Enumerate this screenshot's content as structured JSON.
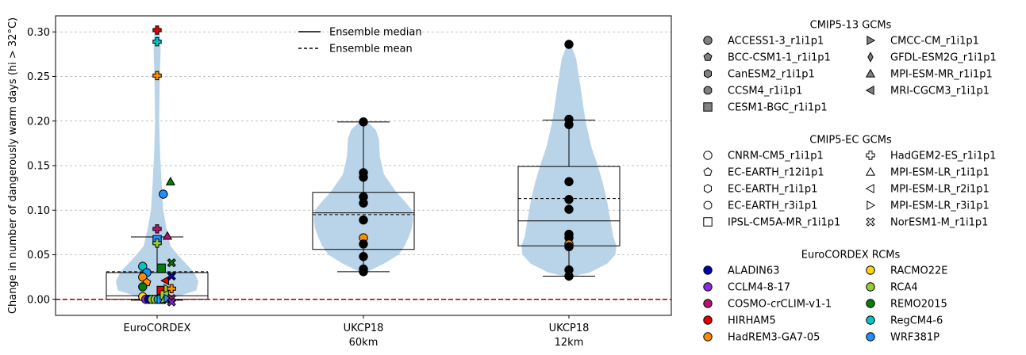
{
  "chart_data": {
    "type": "violin-box",
    "ylabel": "Change in number of dangerously warm days (hi > 32°C)",
    "ylim": [
      -0.018,
      0.318
    ],
    "yticks": [
      0.0,
      0.05,
      0.1,
      0.15,
      0.2,
      0.25,
      0.3
    ],
    "ytick_labels": [
      "0.00",
      "0.05",
      "0.10",
      "0.15",
      "0.20",
      "0.25",
      "0.30"
    ],
    "grid": "horizontal dashed",
    "reference_line": {
      "y": 0.0,
      "color": "#8b0000",
      "style": "dashed"
    },
    "categories": [
      {
        "label": "EuroCORDEX",
        "sublabel": ""
      },
      {
        "label": "UKCP18",
        "sublabel": "60km"
      },
      {
        "label": "UKCP18",
        "sublabel": "12km"
      }
    ],
    "violin_color": "#b9d4e9",
    "violins": [
      {
        "profile": [
          [
            -0.002,
            0.03
          ],
          [
            0.01,
            0.19
          ],
          [
            0.02,
            0.2
          ],
          [
            0.03,
            0.18
          ],
          [
            0.04,
            0.14
          ],
          [
            0.05,
            0.1
          ],
          [
            0.06,
            0.065
          ],
          [
            0.08,
            0.045
          ],
          [
            0.1,
            0.03
          ],
          [
            0.13,
            0.022
          ],
          [
            0.16,
            0.015
          ],
          [
            0.2,
            0.01
          ],
          [
            0.25,
            0.013
          ],
          [
            0.28,
            0.017
          ],
          [
            0.3,
            0.013
          ],
          [
            0.303,
            0.004
          ]
        ]
      },
      {
        "profile": [
          [
            0.031,
            0.02
          ],
          [
            0.04,
            0.1
          ],
          [
            0.05,
            0.17
          ],
          [
            0.06,
            0.2
          ],
          [
            0.07,
            0.22
          ],
          [
            0.08,
            0.235
          ],
          [
            0.09,
            0.24
          ],
          [
            0.1,
            0.235
          ],
          [
            0.11,
            0.2
          ],
          [
            0.12,
            0.16
          ],
          [
            0.14,
            0.1
          ],
          [
            0.16,
            0.08
          ],
          [
            0.18,
            0.075
          ],
          [
            0.19,
            0.06
          ],
          [
            0.199,
            0.02
          ]
        ]
      },
      {
        "profile": [
          [
            0.026,
            0.02
          ],
          [
            0.03,
            0.1
          ],
          [
            0.04,
            0.185
          ],
          [
            0.05,
            0.225
          ],
          [
            0.06,
            0.23
          ],
          [
            0.07,
            0.215
          ],
          [
            0.09,
            0.2
          ],
          [
            0.11,
            0.185
          ],
          [
            0.13,
            0.165
          ],
          [
            0.15,
            0.14
          ],
          [
            0.17,
            0.11
          ],
          [
            0.2,
            0.08
          ],
          [
            0.24,
            0.055
          ],
          [
            0.27,
            0.035
          ],
          [
            0.286,
            0.008
          ]
        ]
      }
    ],
    "boxes": [
      {
        "q1": 0.0,
        "q3": 0.03,
        "median": 0.004,
        "mean": 0.031,
        "whisker_low": -0.001,
        "whisker_high": 0.07
      },
      {
        "q1": 0.056,
        "q3": 0.12,
        "median": 0.097,
        "mean": 0.095,
        "whisker_low": 0.031,
        "whisker_high": 0.199
      },
      {
        "q1": 0.06,
        "q3": 0.149,
        "median": 0.088,
        "mean": 0.113,
        "whisker_low": 0.026,
        "whisker_high": 0.201
      }
    ],
    "points": [
      {
        "cat": 0,
        "dx": -0.07,
        "y": 0.037,
        "gcm": "CNRM-CM5_r1i1p1",
        "rcm": "RegCM4-6"
      },
      {
        "cat": 0,
        "dx": -0.05,
        "y": 0.03,
        "gcm": "CNRM-CM5_r1i1p1",
        "rcm": "WRF381P"
      },
      {
        "cat": 0,
        "dx": -0.07,
        "y": 0.025,
        "gcm": "CNRM-CM5_r1i1p1",
        "rcm": "HadREM3-GA7-05"
      },
      {
        "cat": 0,
        "dx": -0.05,
        "y": 0.019,
        "gcm": "EC-EARTH_r12i1p1",
        "rcm": "HadREM3-GA7-05"
      },
      {
        "cat": 0,
        "dx": -0.07,
        "y": 0.014,
        "gcm": "CNRM-CM5_r1i1p1",
        "rcm": "REMO2015"
      },
      {
        "cat": 0,
        "dx": -0.07,
        "y": 0.003,
        "gcm": "CNRM-CM5_r1i1p1",
        "rcm": "RACMO22E"
      },
      {
        "cat": 0,
        "dx": -0.055,
        "y": 0.0,
        "gcm": "CNRM-CM5_r1i1p1",
        "rcm": "CCLM4-8-17"
      },
      {
        "cat": 0,
        "dx": -0.04,
        "y": 0.0,
        "gcm": "CNRM-CM5_r1i1p1",
        "rcm": "ALADIN63"
      },
      {
        "cat": 0,
        "dx": -0.025,
        "y": 0.0,
        "gcm": "CNRM-CM5_r1i1p1",
        "rcm": "RCA4"
      },
      {
        "cat": 0,
        "dx": -0.01,
        "y": 0.0,
        "gcm": "CNRM-CM5_r1i1p1",
        "rcm": "RCA4"
      },
      {
        "cat": 0,
        "dx": 0.005,
        "y": 0.0,
        "gcm": "CNRM-CM5_r1i1p1",
        "rcm": "RegCM4-6"
      },
      {
        "cat": 0,
        "dx": 0.02,
        "y": 0.01,
        "gcm": "CESM1-BGC_r1i1p1",
        "rcm": "HIRHAM5"
      },
      {
        "cat": 0,
        "dx": 0.02,
        "y": 0.035,
        "gcm": "CESM1-BGC_r1i1p1",
        "rcm": "REMO2015"
      },
      {
        "cat": 0,
        "dx": 0.02,
        "y": 0.0,
        "gcm": "IPSL-CM5A-MR_r1i1p1",
        "rcm": "WRF381P"
      },
      {
        "cat": 0,
        "dx": 0.035,
        "y": 0.005,
        "gcm": "IPSL-CM5A-MR_r1i1p1",
        "rcm": "RCA4"
      },
      {
        "cat": 0,
        "dx": 0.035,
        "y": 0.0,
        "gcm": "MPI-ESM-LR_r1i1p1",
        "rcm": "RCA4"
      },
      {
        "cat": 0,
        "dx": 0.04,
        "y": 0.021,
        "gcm": "MPI-ESM-LR_r2i1p1",
        "rcm": "HIRHAM5"
      },
      {
        "cat": 0,
        "dx": 0.05,
        "y": 0.012,
        "gcm": "MPI-ESM-LR_r3i1p1",
        "rcm": "RCA4"
      },
      {
        "cat": 0,
        "dx": 0.05,
        "y": 0.001,
        "gcm": "MPI-ESM-LR_r3i1p1",
        "rcm": "WRF381P"
      },
      {
        "cat": 0,
        "dx": 0.07,
        "y": 0.041,
        "gcm": "NorESM1-M_r1i1p1",
        "rcm": "REMO2015"
      },
      {
        "cat": 0,
        "dx": 0.07,
        "y": 0.026,
        "gcm": "NorESM1-M_r1i1p1",
        "rcm": "ALADIN63"
      },
      {
        "cat": 0,
        "dx": 0.07,
        "y": 0.012,
        "gcm": "HadGEM2-ES_r1i1p1",
        "rcm": "HadREM3-GA7-05"
      },
      {
        "cat": 0,
        "dx": 0.07,
        "y": 0.001,
        "gcm": "NorESM1-M_r1i1p1",
        "rcm": "COSMO-crCLIM-v1-1"
      },
      {
        "cat": 0,
        "dx": 0.07,
        "y": -0.003,
        "gcm": "NorESM1-M_r1i1p1",
        "rcm": "CCLM4-8-17"
      },
      {
        "cat": 0,
        "dx": 0.0,
        "y": 0.302,
        "gcm": "HadGEM2-ES_r1i1p1",
        "rcm": "HIRHAM5"
      },
      {
        "cat": 0,
        "dx": 0.0,
        "y": 0.289,
        "gcm": "HadGEM2-ES_r1i1p1",
        "rcm": "RegCM4-6"
      },
      {
        "cat": 0,
        "dx": 0.0,
        "y": 0.251,
        "gcm": "HadGEM2-ES_r1i1p1",
        "rcm": "HadREM3-GA7-05"
      },
      {
        "cat": 0,
        "dx": 0.065,
        "y": 0.132,
        "gcm": "MPI-ESM-MR_r1i1p1",
        "rcm": "REMO2015"
      },
      {
        "cat": 0,
        "dx": 0.03,
        "y": 0.118,
        "gcm": "MPI-CGCM3_r1i1p1",
        "rcm": "WRF381P"
      },
      {
        "cat": 0,
        "dx": 0.05,
        "y": 0.071,
        "gcm": "MPI-ESM-LR_r1i1p1",
        "rcm": "COSMO-crCLIM-v1-1"
      },
      {
        "cat": 0,
        "dx": 0.0,
        "y": 0.079,
        "gcm": "HadGEM2-ES_r1i1p1",
        "rcm": "COSMO-crCLIM-v1-1"
      },
      {
        "cat": 0,
        "dx": 0.0,
        "y": 0.067,
        "gcm": "CESM1-BGC_r1i1p1",
        "rcm": "WRF381P"
      },
      {
        "cat": 0,
        "dx": 0.0,
        "y": 0.063,
        "gcm": "HadGEM2-ES_r1i1p1",
        "rcm": "RCA4"
      },
      {
        "cat": 1,
        "dx": 0.0,
        "y": 0.199,
        "gcm": "ACCESS1-3_r1i1p1",
        "rcm": ""
      },
      {
        "cat": 1,
        "dx": 0.0,
        "y": 0.142,
        "gcm": "ACCESS1-3_r1i1p1",
        "rcm": ""
      },
      {
        "cat": 1,
        "dx": 0.0,
        "y": 0.137,
        "gcm": "ACCESS1-3_r1i1p1",
        "rcm": ""
      },
      {
        "cat": 1,
        "dx": 0.0,
        "y": 0.115,
        "gcm": "ACCESS1-3_r1i1p1",
        "rcm": ""
      },
      {
        "cat": 1,
        "dx": 0.0,
        "y": 0.108,
        "gcm": "ACCESS1-3_r1i1p1",
        "rcm": ""
      },
      {
        "cat": 1,
        "dx": 0.0,
        "y": 0.089,
        "gcm": "ACCESS1-3_r1i1p1",
        "rcm": ""
      },
      {
        "cat": 1,
        "dx": 0.0,
        "y": 0.069,
        "gcm": "ACCESS1-3_r1i1p1",
        "rcm": "HadREM3-GA7-05"
      },
      {
        "cat": 1,
        "dx": 0.0,
        "y": 0.062,
        "gcm": "ACCESS1-3_r1i1p1",
        "rcm": ""
      },
      {
        "cat": 1,
        "dx": 0.0,
        "y": 0.048,
        "gcm": "ACCESS1-3_r1i1p1",
        "rcm": ""
      },
      {
        "cat": 1,
        "dx": 0.0,
        "y": 0.034,
        "gcm": "ACCESS1-3_r1i1p1",
        "rcm": ""
      },
      {
        "cat": 1,
        "dx": 0.0,
        "y": 0.031,
        "gcm": "ACCESS1-3_r1i1p1",
        "rcm": ""
      },
      {
        "cat": 2,
        "dx": 0.0,
        "y": 0.286,
        "gcm": "ACCESS1-3_r1i1p1",
        "rcm": ""
      },
      {
        "cat": 2,
        "dx": 0.0,
        "y": 0.202,
        "gcm": "ACCESS1-3_r1i1p1",
        "rcm": ""
      },
      {
        "cat": 2,
        "dx": 0.0,
        "y": 0.196,
        "gcm": "ACCESS1-3_r1i1p1",
        "rcm": ""
      },
      {
        "cat": 2,
        "dx": 0.0,
        "y": 0.132,
        "gcm": "ACCESS1-3_r1i1p1",
        "rcm": ""
      },
      {
        "cat": 2,
        "dx": 0.0,
        "y": 0.112,
        "gcm": "ACCESS1-3_r1i1p1",
        "rcm": ""
      },
      {
        "cat": 2,
        "dx": 0.0,
        "y": 0.101,
        "gcm": "ACCESS1-3_r1i1p1",
        "rcm": ""
      },
      {
        "cat": 2,
        "dx": 0.0,
        "y": 0.073,
        "gcm": "ACCESS1-3_r1i1p1",
        "rcm": ""
      },
      {
        "cat": 2,
        "dx": 0.0,
        "y": 0.069,
        "gcm": "ACCESS1-3_r1i1p1",
        "rcm": ""
      },
      {
        "cat": 2,
        "dx": 0.0,
        "y": 0.062,
        "gcm": "ACCESS1-3_r1i1p1",
        "rcm": "HadREM3-GA7-05"
      },
      {
        "cat": 2,
        "dx": 0.0,
        "y": 0.059,
        "gcm": "ACCESS1-3_r1i1p1",
        "rcm": ""
      },
      {
        "cat": 2,
        "dx": 0.0,
        "y": 0.033,
        "gcm": "ACCESS1-3_r1i1p1",
        "rcm": ""
      },
      {
        "cat": 2,
        "dx": 0.0,
        "y": 0.026,
        "gcm": "ACCESS1-3_r1i1p1",
        "rcm": ""
      }
    ],
    "stat_legend": [
      {
        "label": "Ensemble median",
        "style": "solid"
      },
      {
        "label": "Ensemble mean",
        "style": "dashed"
      }
    ],
    "legend_placement": "outside-right",
    "legend_groups": [
      {
        "title": "CMIP5-13 GCMs",
        "columns": [
          [
            {
              "label": "ACCESS1-3_r1i1p1",
              "marker": "circle",
              "fill": "#808080"
            },
            {
              "label": "BCC-CSM1-1_r1i1p1",
              "marker": "pentagon",
              "fill": "#808080"
            },
            {
              "label": "CanESM2_r1i1p1",
              "marker": "hexagon",
              "fill": "#808080"
            },
            {
              "label": "CCSM4_r1i1p1",
              "marker": "octagon",
              "fill": "#808080"
            },
            {
              "label": "CESM1-BGC_r1i1p1",
              "marker": "square",
              "fill": "#808080"
            }
          ],
          [
            {
              "label": "CMCC-CM_r1i1p1",
              "marker": "triangle-right",
              "fill": "#808080"
            },
            {
              "label": "GFDL-ESM2G_r1i1p1",
              "marker": "thin-diamond",
              "fill": "#808080"
            },
            {
              "label": "MPI-ESM-MR_r1i1p1",
              "marker": "triangle-up",
              "fill": "#808080"
            },
            {
              "label": "MRI-CGCM3_r1i1p1",
              "marker": "triangle-left",
              "fill": "#808080"
            }
          ]
        ]
      },
      {
        "title": "CMIP5-EC GCMs",
        "columns": [
          [
            {
              "label": "CNRM-CM5_r1i1p1",
              "marker": "circle",
              "fill": "#ffffff"
            },
            {
              "label": "EC-EARTH_r12i1p1",
              "marker": "pentagon",
              "fill": "#ffffff"
            },
            {
              "label": "EC-EARTH_r1i1p1",
              "marker": "hexagon",
              "fill": "#ffffff"
            },
            {
              "label": "EC-EARTH_r3i1p1",
              "marker": "octagon",
              "fill": "#ffffff"
            },
            {
              "label": "IPSL-CM5A-MR_r1i1p1",
              "marker": "square",
              "fill": "#ffffff"
            }
          ],
          [
            {
              "label": "HadGEM2-ES_r1i1p1",
              "marker": "plus",
              "fill": "#ffffff"
            },
            {
              "label": "MPI-ESM-LR_r1i1p1",
              "marker": "triangle-up",
              "fill": "#ffffff"
            },
            {
              "label": "MPI-ESM-LR_r2i1p1",
              "marker": "triangle-left",
              "fill": "#ffffff"
            },
            {
              "label": "MPI-ESM-LR_r3i1p1",
              "marker": "triangle-right",
              "fill": "#ffffff"
            },
            {
              "label": "NorESM1-M_r1i1p1",
              "marker": "x",
              "fill": "#ffffff"
            }
          ]
        ]
      },
      {
        "title": "EuroCORDEX RCMs",
        "columns": [
          [
            {
              "label": "ALADIN63",
              "marker": "circle",
              "fill": "#0000b3"
            },
            {
              "label": "CCLM4-8-17",
              "marker": "circle",
              "fill": "#8a2be2"
            },
            {
              "label": "COSMO-crCLIM-v1-1",
              "marker": "circle",
              "fill": "#b5146e"
            },
            {
              "label": "HIRHAM5",
              "marker": "circle",
              "fill": "#e60000"
            },
            {
              "label": "HadREM3-GA7-05",
              "marker": "circle",
              "fill": "#ff8c00"
            }
          ],
          [
            {
              "label": "RACMO22E",
              "marker": "circle",
              "fill": "#ffd700"
            },
            {
              "label": "RCA4",
              "marker": "circle",
              "fill": "#9acd32"
            },
            {
              "label": "REMO2015",
              "marker": "circle",
              "fill": "#0a7a0a"
            },
            {
              "label": "RegCM4-6",
              "marker": "circle",
              "fill": "#00c5c5"
            },
            {
              "label": "WRF381P",
              "marker": "circle",
              "fill": "#1e90ff"
            }
          ]
        ]
      }
    ]
  }
}
